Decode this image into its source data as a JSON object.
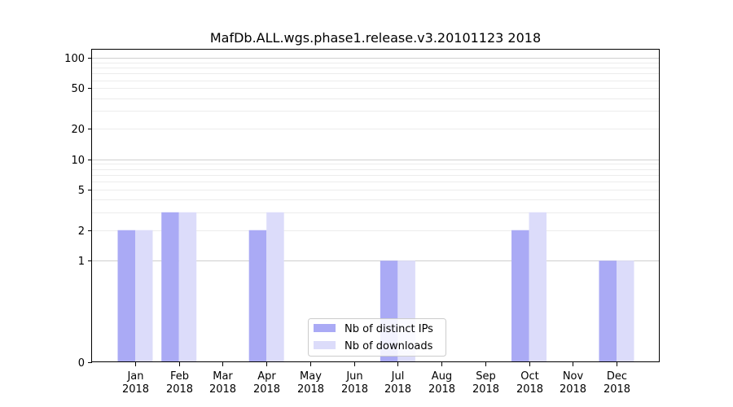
{
  "chart_data": {
    "type": "bar",
    "title": "MafDb.ALL.wgs.phase1.release.v3.20101123 2018",
    "xlabel": "",
    "ylabel": "",
    "y_scale": "symlog",
    "ylim": [
      0,
      120
    ],
    "y_ticks": [
      0,
      1,
      2,
      5,
      10,
      20,
      50,
      100
    ],
    "grid": "horizontal",
    "legend_position": "lower center",
    "categories": [
      [
        "Jan",
        "2018"
      ],
      [
        "Feb",
        "2018"
      ],
      [
        "Mar",
        "2018"
      ],
      [
        "Apr",
        "2018"
      ],
      [
        "May",
        "2018"
      ],
      [
        "Jun",
        "2018"
      ],
      [
        "Jul",
        "2018"
      ],
      [
        "Aug",
        "2018"
      ],
      [
        "Sep",
        "2018"
      ],
      [
        "Oct",
        "2018"
      ],
      [
        "Nov",
        "2018"
      ],
      [
        "Dec",
        "2018"
      ]
    ],
    "series": [
      {
        "name": "Nb of distinct IPs",
        "color": "#aaaaf5",
        "values": [
          2,
          3,
          0,
          2,
          0,
          0,
          1,
          0,
          0,
          2,
          0,
          1
        ]
      },
      {
        "name": "Nb of downloads",
        "color": "#dcdcfa",
        "values": [
          2,
          3,
          0,
          3,
          0,
          0,
          1,
          0,
          0,
          3,
          0,
          1
        ]
      }
    ]
  }
}
